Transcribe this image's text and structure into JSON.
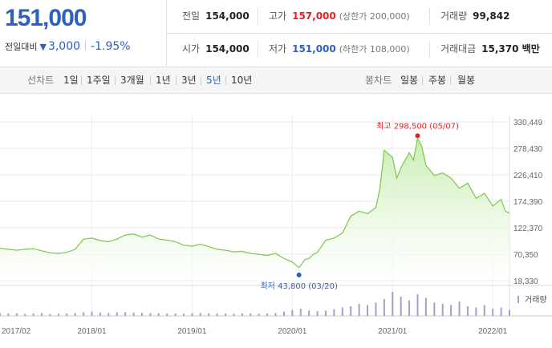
{
  "quote": {
    "price": "151,000",
    "change_label": "전일대비",
    "change_arrow": "▼",
    "change_amount": "3,000",
    "change_percent": "-1.95%",
    "colors": {
      "down": "#2f5fbf",
      "up": "#e32222"
    },
    "stats": {
      "prev_close": {
        "label": "전일",
        "value": "154,000"
      },
      "high": {
        "label": "고가",
        "value": "157,000",
        "sub": "(상한가 200,000)"
      },
      "volume": {
        "label": "거래량",
        "value": "99,842"
      },
      "open": {
        "label": "시가",
        "value": "154,000"
      },
      "low": {
        "label": "저가",
        "value": "151,000",
        "sub": "(하한가 108,000)"
      },
      "amount": {
        "label": "거래대금",
        "value": "15,370 백만"
      }
    }
  },
  "tabs": {
    "line_label": "선차트",
    "line_periods": [
      "1일",
      "1주일",
      "3개월",
      "1년",
      "3년",
      "5년",
      "10년"
    ],
    "active_period": "5년",
    "candle_label": "봉차트",
    "candle_periods": [
      "일봉",
      "주봉",
      "월봉"
    ]
  },
  "chart_data": {
    "type": "area",
    "title": "",
    "xlabel": "",
    "ylabel": "",
    "ylim": [
      18330,
      330449
    ],
    "yticks": [
      "330,449",
      "278,430",
      "226,410",
      "174,390",
      "122,370",
      "70,350",
      "18,330"
    ],
    "xticks": [
      {
        "label": "2017/02",
        "t": 0
      },
      {
        "label": "2018/01",
        "t": 11
      },
      {
        "label": "2019/01",
        "t": 23
      },
      {
        "label": "2020/01",
        "t": 35
      },
      {
        "label": "2021/01",
        "t": 47
      },
      {
        "label": "2022/01",
        "t": 59
      }
    ],
    "t_max": 61,
    "series": [
      {
        "values": [
          [
            0,
            82000
          ],
          [
            1,
            80000
          ],
          [
            2,
            78000
          ],
          [
            3,
            80000
          ],
          [
            4,
            81000
          ],
          [
            5,
            77000
          ],
          [
            6,
            73000
          ],
          [
            7,
            72000
          ],
          [
            8,
            74000
          ],
          [
            9,
            80000
          ],
          [
            10,
            100000
          ],
          [
            11,
            102000
          ],
          [
            12,
            97000
          ],
          [
            13,
            95000
          ],
          [
            14,
            100000
          ],
          [
            15,
            108000
          ],
          [
            16,
            110000
          ],
          [
            17,
            104000
          ],
          [
            18,
            108000
          ],
          [
            19,
            100000
          ],
          [
            20,
            98000
          ],
          [
            21,
            95000
          ],
          [
            22,
            88000
          ],
          [
            23,
            86000
          ],
          [
            24,
            90000
          ],
          [
            25,
            85000
          ],
          [
            26,
            80000
          ],
          [
            27,
            78000
          ],
          [
            28,
            75000
          ],
          [
            29,
            76000
          ],
          [
            30,
            72000
          ],
          [
            31,
            70000
          ],
          [
            32,
            68000
          ],
          [
            33,
            72000
          ],
          [
            34,
            62000
          ],
          [
            35,
            55000
          ],
          [
            35.8,
            43800
          ],
          [
            36.5,
            60000
          ],
          [
            37,
            62000
          ],
          [
            37.5,
            70000
          ],
          [
            38,
            74000
          ],
          [
            39,
            98000
          ],
          [
            40,
            102000
          ],
          [
            41,
            112000
          ],
          [
            42,
            145000
          ],
          [
            43,
            155000
          ],
          [
            44,
            150000
          ],
          [
            45,
            162000
          ],
          [
            45.5,
            200000
          ],
          [
            46,
            275000
          ],
          [
            47,
            260000
          ],
          [
            47.5,
            220000
          ],
          [
            48,
            240000
          ],
          [
            49,
            270000
          ],
          [
            49.5,
            255000
          ],
          [
            50,
            298500
          ],
          [
            50.5,
            282000
          ],
          [
            51,
            245000
          ],
          [
            52,
            225000
          ],
          [
            53,
            230000
          ],
          [
            54,
            220000
          ],
          [
            55,
            200000
          ],
          [
            56,
            210000
          ],
          [
            57,
            180000
          ],
          [
            58,
            190000
          ],
          [
            59,
            165000
          ],
          [
            60,
            178000
          ],
          [
            60.5,
            155000
          ],
          [
            61,
            151000
          ]
        ]
      }
    ],
    "volume": [
      0.12,
      0.1,
      0.11,
      0.09,
      0.1,
      0.12,
      0.08,
      0.09,
      0.1,
      0.12,
      0.15,
      0.18,
      0.14,
      0.12,
      0.15,
      0.16,
      0.14,
      0.13,
      0.12,
      0.11,
      0.1,
      0.1,
      0.09,
      0.11,
      0.12,
      0.11,
      0.1,
      0.1,
      0.09,
      0.11,
      0.1,
      0.09,
      0.1,
      0.12,
      0.18,
      0.25,
      0.3,
      0.22,
      0.2,
      0.22,
      0.28,
      0.35,
      0.4,
      0.5,
      0.45,
      0.55,
      0.7,
      1.0,
      0.8,
      0.65,
      0.9,
      0.75,
      0.55,
      0.5,
      0.45,
      0.6,
      0.4,
      0.35,
      0.45,
      0.3,
      0.35,
      0.25
    ],
    "annotations": {
      "high": {
        "label": "최고 298,500 (05/07)",
        "t": 50,
        "y": 298500,
        "color": "#e32222"
      },
      "low": {
        "label": "최저 43,800 (03/20)",
        "t": 35.8,
        "y": 43800,
        "color": "#2f5fbf"
      }
    },
    "volume_label": "거래량",
    "grid": true,
    "line_color": "#7bc84a",
    "fill_color": "#c9edb2"
  }
}
